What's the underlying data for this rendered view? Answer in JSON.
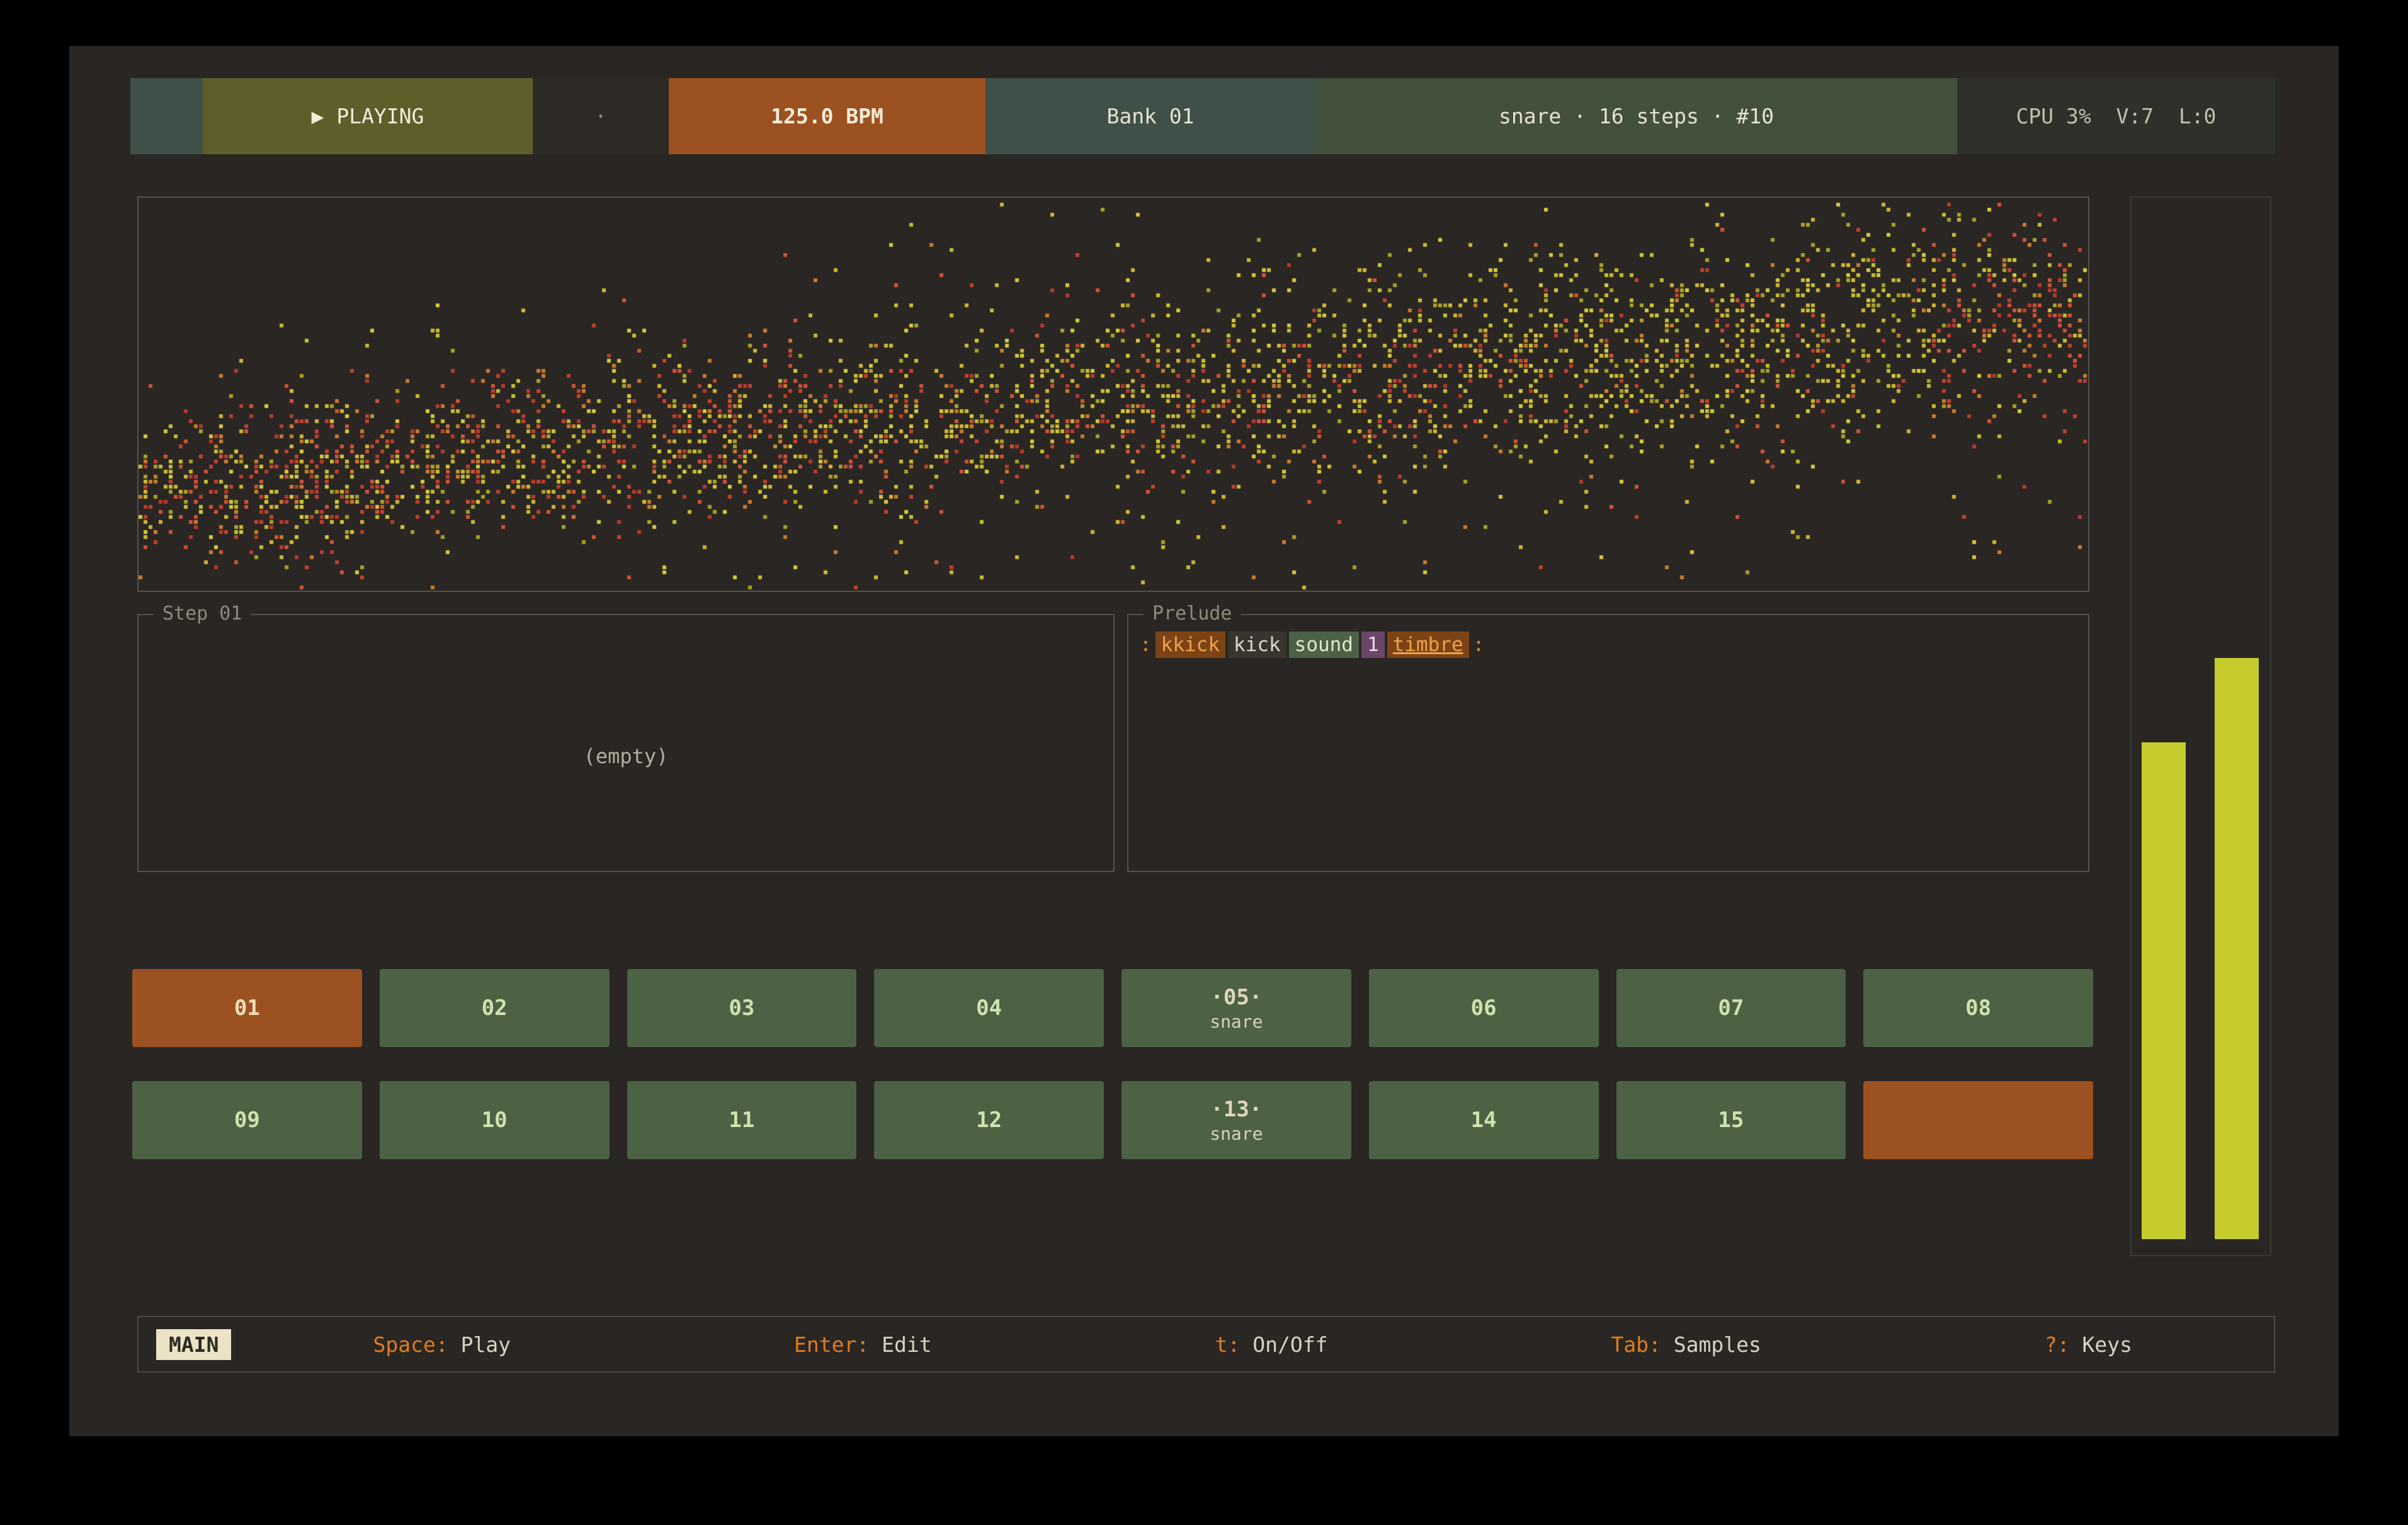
{
  "topbar": {
    "status": "▶ PLAYING",
    "separator": "·",
    "bpm": "125.0 BPM",
    "bank": "Bank 01",
    "pattern_info": "snare · 16 steps · #10",
    "system_stats": "CPU 3%  V:7  L:0"
  },
  "step_panel": {
    "title": "Step 01",
    "empty": "(empty)"
  },
  "prelude_panel": {
    "title": "Prelude",
    "tokens": [
      {
        "text": ":",
        "style": "tok-punct"
      },
      {
        "text": "kkick",
        "style": "tok-tag-orange"
      },
      {
        "text": "kick",
        "style": "tok-plain"
      },
      {
        "text": "sound",
        "style": "tok-tag-green"
      },
      {
        "text": "1",
        "style": "tok-tag-purple"
      },
      {
        "text": "timbre",
        "style": "tok-tag-orange tok-underline"
      },
      {
        "text": ":",
        "style": "tok-punct"
      }
    ]
  },
  "steps": {
    "items": [
      {
        "label": "01",
        "state": "active"
      },
      {
        "label": "02",
        "state": "normal"
      },
      {
        "label": "03",
        "state": "normal"
      },
      {
        "label": "04",
        "state": "normal"
      },
      {
        "label": "·05·",
        "sub": "snare",
        "state": "normal"
      },
      {
        "label": "06",
        "state": "normal"
      },
      {
        "label": "07",
        "state": "normal"
      },
      {
        "label": "08",
        "state": "normal"
      },
      {
        "label": "09",
        "state": "normal"
      },
      {
        "label": "10",
        "state": "normal"
      },
      {
        "label": "11",
        "state": "normal"
      },
      {
        "label": "12",
        "state": "normal"
      },
      {
        "label": "·13·",
        "sub": "snare",
        "state": "normal"
      },
      {
        "label": "14",
        "state": "normal"
      },
      {
        "label": "15",
        "state": "normal"
      },
      {
        "label": "",
        "state": "active"
      }
    ]
  },
  "meters": {
    "left_pct": 47,
    "right_pct": 55,
    "color": "#c6cc2d"
  },
  "footer": {
    "mode": "MAIN",
    "shortcuts": [
      {
        "key": "Space",
        "label": "Play"
      },
      {
        "key": "Enter",
        "label": "Edit"
      },
      {
        "key": "t",
        "label": "On/Off"
      },
      {
        "key": "Tab",
        "label": "Samples"
      },
      {
        "key": "?",
        "label": "Keys"
      }
    ]
  },
  "visualization": {
    "seed": 1337,
    "dot_count": 3400,
    "outlier_count": 280,
    "grid": 8,
    "dot_size": 6,
    "palette_red": [
      "#c4402e",
      "#d05238",
      "#b83a2c",
      "#c97a2e"
    ],
    "palette_yellow": [
      "#c8bc30",
      "#d4c83a",
      "#a8a028",
      "#cdb434"
    ]
  }
}
